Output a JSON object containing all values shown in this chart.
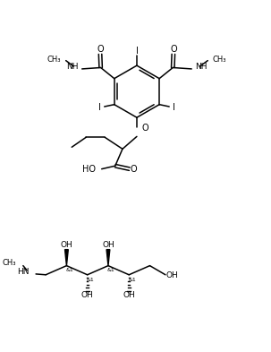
{
  "background_color": "#ffffff",
  "line_color": "#000000",
  "line_width": 1.1,
  "font_size": 6.5,
  "figsize": [
    3.03,
    3.93
  ],
  "dpi": 100,
  "xlim": [
    0,
    10
  ],
  "ylim": [
    0,
    13
  ]
}
